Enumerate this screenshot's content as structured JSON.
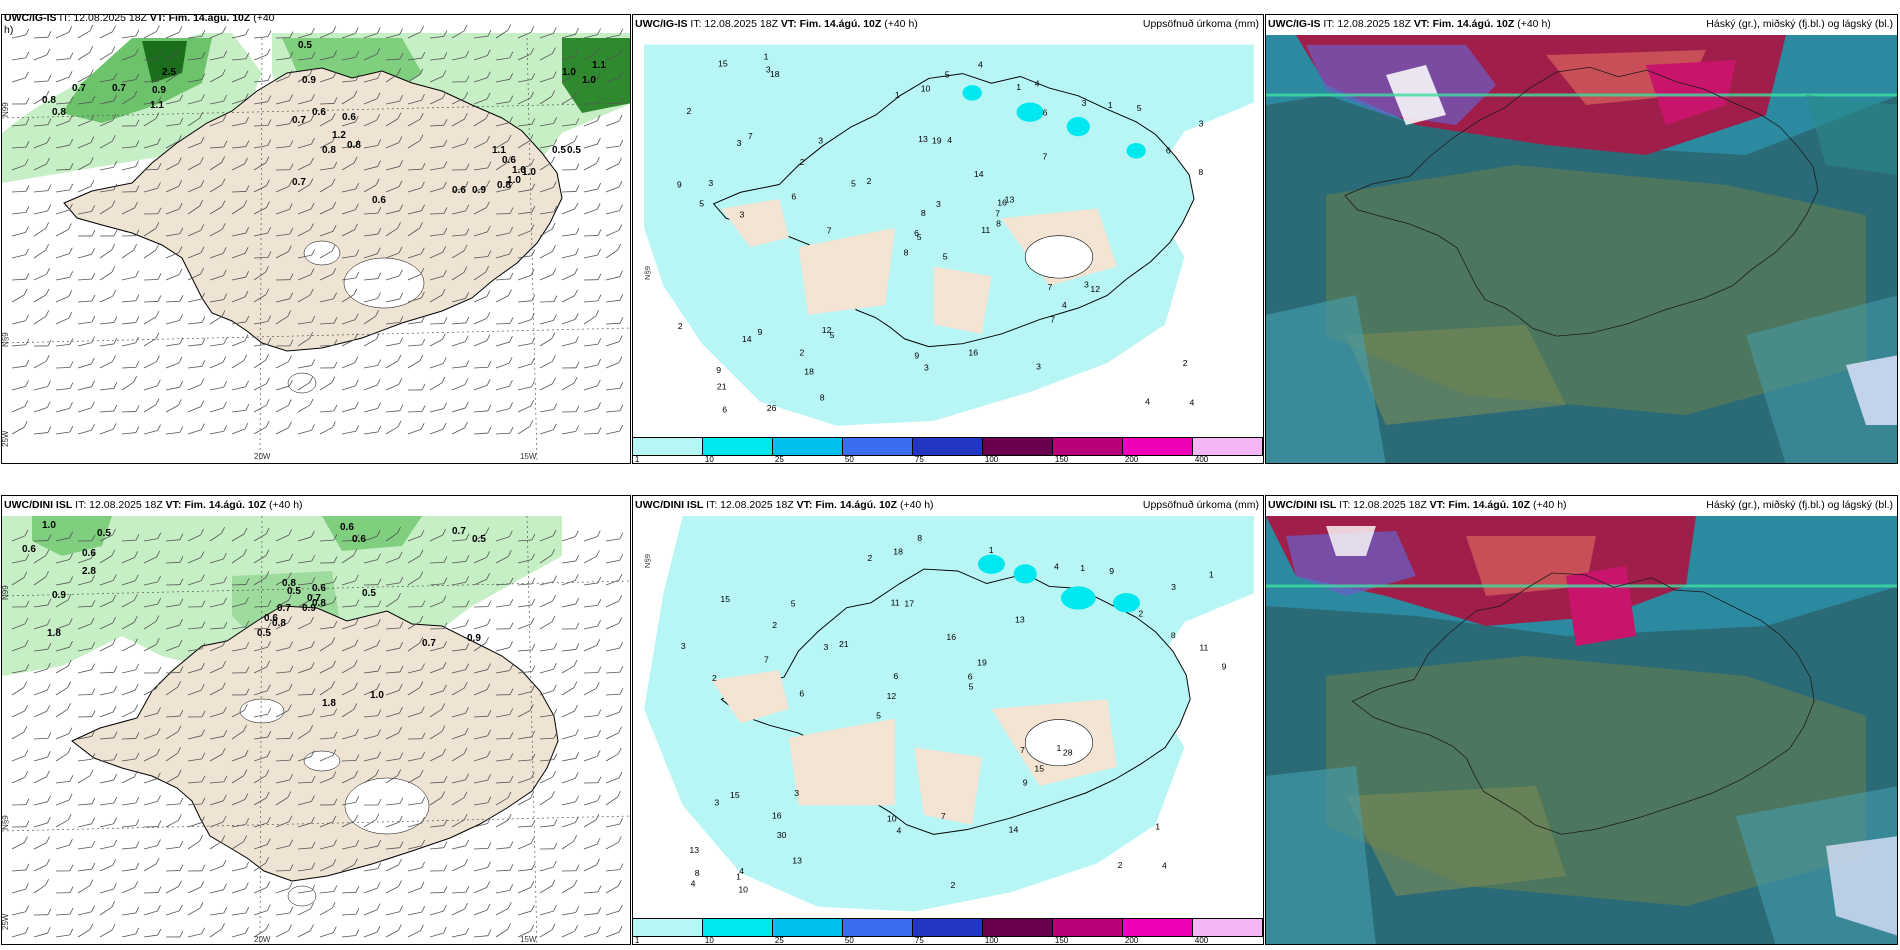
{
  "row1": {
    "wind": {
      "header_left": "UWC/IG-IS",
      "header_it": "IT: 12.08.2025 18Z",
      "header_vt": "VT: Fim. 14.ágú. 10Z",
      "header_lead_a": "(+40",
      "header_lead_b": "h)",
      "precip_labels": [
        "2.5",
        "0.5",
        "0.7",
        "0.8",
        "0.7",
        "0.8",
        "1.1",
        "0.9",
        "0.9",
        "0.7",
        "0.6",
        "0.6",
        "0.8",
        "0.8",
        "1.2",
        "0.7",
        "0.6",
        "1.1",
        "0.6",
        "0.9",
        "1.0",
        "0.8",
        "1.0",
        "0.6",
        "0.5",
        "1.0",
        "1.0",
        "1.0",
        "1.1",
        "0.5"
      ],
      "lat_label": "N99",
      "lat_label2": "N§9",
      "lon_labels": [
        "20W",
        "15W"
      ],
      "corner_label": "25W"
    },
    "precip": {
      "header_left": "UWC/IG-IS",
      "header_it": "IT: 12.08.2025 18Z",
      "header_vt": "VT: Fim. 14.ágú. 10Z",
      "header_lead": "(+40 h)",
      "header_right": "Uppsöfnuð úrkoma (mm)",
      "values": [
        "5",
        "3",
        "5",
        "9",
        "16",
        "5",
        "4",
        "4",
        "6",
        "11",
        "18",
        "4",
        "3",
        "3",
        "8",
        "7",
        "26",
        "13",
        "14",
        "9",
        "2",
        "21",
        "18",
        "19",
        "13",
        "12",
        "7",
        "10",
        "5",
        "7",
        "8",
        "6",
        "9",
        "8",
        "3",
        "3",
        "12",
        "4",
        "2",
        "3",
        "4",
        "5",
        "6",
        "7",
        "8",
        "9",
        "7",
        "6",
        "3",
        "8",
        "14",
        "6",
        "2",
        "4",
        "3",
        "2",
        "3",
        "15",
        "16",
        "5",
        "5",
        "7",
        "3",
        "2",
        "1",
        "1",
        "1",
        "1",
        "3",
        "2"
      ],
      "colorbar_colors": [
        "#b8f5f5",
        "#00e8ef",
        "#00bfef",
        "#3a6ef0",
        "#2236c4",
        "#6b0050",
        "#b8007a",
        "#f000b8",
        "#f4b5f4"
      ],
      "colorbar_ticks": [
        "1",
        "10",
        "25",
        "50",
        "75",
        "100",
        "150",
        "200",
        "400"
      ],
      "lat_label": "N§9"
    },
    "cloud": {
      "header_left": "UWC/IG-IS",
      "header_it": "IT: 12.08.2025 18Z",
      "header_vt": "VT: Fim. 14.ágú. 10Z",
      "header_lead": "(+40 h)",
      "header_right": "Háský (gr.), miðský (fj.bl.) og lágský (bl.)"
    }
  },
  "row2": {
    "wind": {
      "header_left": "UWC/DINI ISL",
      "header_it": "IT: 12.08.2025 18Z",
      "header_vt": "VT: Fim. 14.ágú. 10Z",
      "header_lead": "(+40 h)",
      "precip_labels": [
        "1.0",
        "0.6",
        "0.5",
        "0.6",
        "2.8",
        "0.9",
        "1.8",
        "0.8",
        "0.5",
        "0.7",
        "0.6",
        "0.5",
        "0.8",
        "0.9",
        "0.8",
        "0.7",
        "0.6",
        "0.5",
        "0.7",
        "0.9",
        "1.8",
        "1.0",
        "0.6",
        "0.6",
        "0.7",
        "0.5"
      ],
      "lat_label": "N99",
      "lat_label2": "N§9",
      "lon_labels": [
        "20W",
        "15W"
      ],
      "corner_label": "25W"
    },
    "precip": {
      "header_left": "UWC/DINI ISL",
      "header_it": "IT: 12.08.2025 18Z",
      "header_vt": "VT: Fim. 14.ágú. 10Z",
      "header_lead": "(+40 h)",
      "header_right": "Uppsöfnuð úrkoma (mm)",
      "values": [
        "4",
        "2",
        "3",
        "5",
        "13",
        "4",
        "11",
        "16",
        "15",
        "21",
        "13",
        "30",
        "17",
        "19",
        "28",
        "15",
        "18",
        "9",
        "7",
        "8",
        "12",
        "10",
        "6",
        "5",
        "4",
        "3",
        "2",
        "1",
        "1",
        "2",
        "3",
        "7",
        "9",
        "13",
        "11",
        "6",
        "8",
        "4",
        "5",
        "3",
        "2",
        "1",
        "15",
        "14",
        "16",
        "10",
        "4",
        "7",
        "9",
        "8",
        "6",
        "3",
        "2",
        "1",
        "1",
        "1",
        "2"
      ],
      "colorbar_colors": [
        "#b8f5f5",
        "#00e8ef",
        "#00bfef",
        "#3a6ef0",
        "#2236c4",
        "#6b0050",
        "#b8007a",
        "#f000b8",
        "#f4b5f4"
      ],
      "colorbar_ticks": [
        "1",
        "10",
        "25",
        "50",
        "75",
        "100",
        "150",
        "200",
        "400"
      ],
      "lat_label": "N§9"
    },
    "cloud": {
      "header_left": "UWC/DINI ISL",
      "header_it": "IT: 12.08.2025 18Z",
      "header_vt": "VT: Fim. 14.ágú. 10Z",
      "header_lead": "(+40 h)",
      "header_right": "Háský (gr.), miðský (fj.bl.) og lágský (bl.)"
    }
  }
}
